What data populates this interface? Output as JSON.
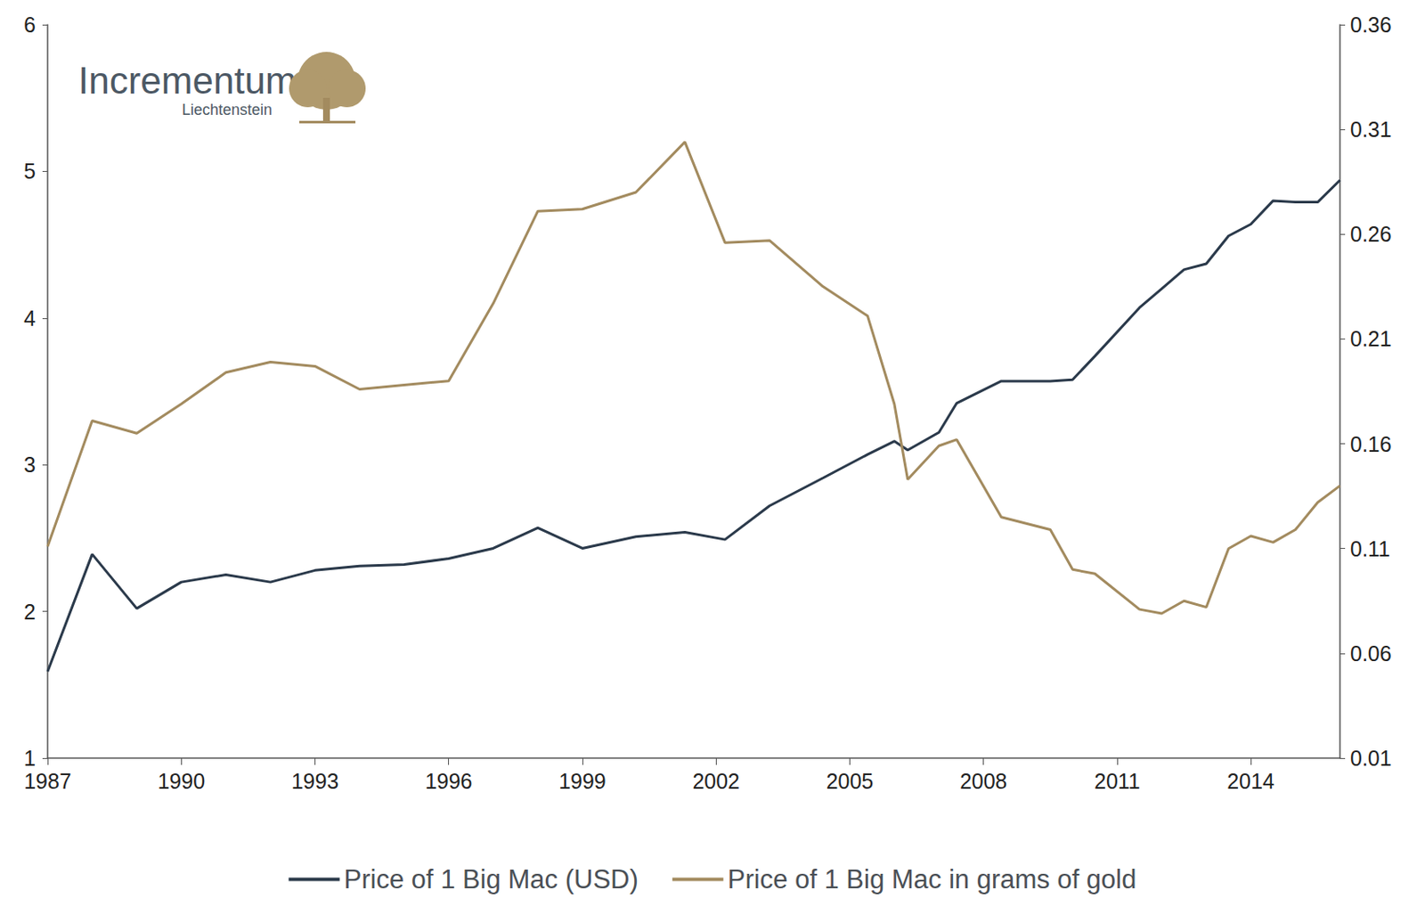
{
  "chart_data": {
    "type": "line",
    "annotations": [
      "Incrementum",
      "Liechtenstein"
    ],
    "x": [
      1987,
      1988,
      1989,
      1990,
      1991,
      1992,
      1993,
      1994,
      1995,
      1996,
      1997,
      1998,
      1999,
      2000.2,
      2001.3,
      2002.2,
      2003.2,
      2004.4,
      2005.4,
      2006,
      2006.3,
      2007,
      2007.4,
      2008.4,
      2009.5,
      2010,
      2010.5,
      2011.5,
      2012,
      2012.5,
      2013,
      2013.5,
      2014,
      2014.5,
      2015,
      2015.5,
      2016
    ],
    "xlim": [
      1987,
      2016
    ],
    "xticks": [
      1987,
      1990,
      1993,
      1996,
      1999,
      2002,
      2005,
      2008,
      2011,
      2014
    ],
    "ylim": [
      1,
      6
    ],
    "yticks": [
      1,
      2,
      3,
      4,
      5,
      6
    ],
    "y2lim": [
      0.01,
      0.36
    ],
    "y2ticks": [
      0.01,
      0.06,
      0.11,
      0.16,
      0.21,
      0.26,
      0.31,
      0.36
    ],
    "grid": false,
    "legend": "bottom",
    "series": [
      {
        "name": "Price of 1 Big Mac (USD)",
        "color": "#2b3a4b",
        "values": [
          1.59,
          2.39,
          2.02,
          2.2,
          2.25,
          2.2,
          2.28,
          2.31,
          2.32,
          2.36,
          2.43,
          2.57,
          2.43,
          2.51,
          2.54,
          2.49,
          2.72,
          2.91,
          3.07,
          3.16,
          3.1,
          3.22,
          3.42,
          3.57,
          3.57,
          3.58,
          3.74,
          4.07,
          4.2,
          4.33,
          4.37,
          4.56,
          4.64,
          4.8,
          4.79,
          4.79,
          4.94
        ]
      },
      {
        "name": "Price of 1 Big Mac in grams of gold",
        "color": "#a38b5f",
        "axis": "y2",
        "values": [
          0.111,
          0.171,
          0.165,
          0.179,
          0.194,
          0.199,
          0.197,
          0.186,
          0.188,
          0.19,
          0.227,
          0.271,
          0.272,
          0.28,
          0.304,
          0.256,
          0.257,
          0.235,
          0.221,
          0.179,
          0.143,
          0.159,
          0.162,
          0.125,
          0.119,
          0.1,
          0.098,
          0.081,
          0.079,
          0.085,
          0.082,
          0.11,
          0.116,
          0.113,
          0.119,
          0.132,
          0.14
        ]
      }
    ]
  }
}
